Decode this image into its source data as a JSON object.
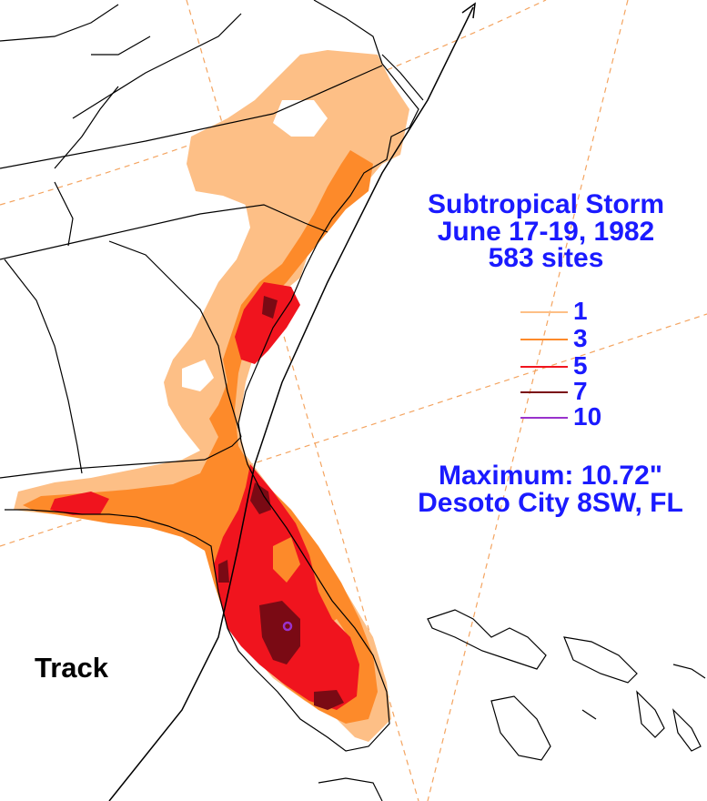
{
  "title": {
    "line1": "Subtropical Storm",
    "line2": "June 17-19, 1982",
    "line3": "583 sites"
  },
  "legend": [
    {
      "value": "1",
      "color": "#fdbf86"
    },
    {
      "value": "3",
      "color": "#fd8a2a"
    },
    {
      "value": "5",
      "color": "#f0141e"
    },
    {
      "value": "7",
      "color": "#7a0a14"
    },
    {
      "value": "10",
      "color": "#9932cc"
    }
  ],
  "maximum": {
    "label": "Maximum:  10.72\"",
    "location": "Desoto City 8SW, FL"
  },
  "track_label": "Track",
  "colors": {
    "text": "#1a1aff",
    "grid": "#f4a460",
    "boundary": "#000000"
  }
}
